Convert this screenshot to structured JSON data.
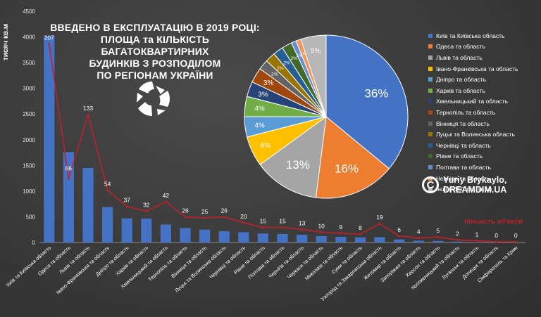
{
  "title_lines": [
    "ВВЕДЕНО В ЕКСПЛУАТАЦІЮ В 2019 РОЦІ:",
    "ПЛОЩА та КІЛЬКІСТЬ БАГАТОКВАРТИРНИХ",
    "БУДИНКІВ З РОЗПОДІЛОМ",
    "ПО РЕГІОНАМ УКРАЇНИ"
  ],
  "credit": {
    "symbol": "C",
    "lines": [
      "Yuriy Brykaylo,",
      "DREAMDIM.UA"
    ]
  },
  "logo": {
    "icon": "triskelion-logo-icon"
  },
  "chart_data": [
    {
      "type": "bar",
      "ylabel": "тисяч кв.м",
      "ylim": [
        0,
        4500
      ],
      "yticks": [
        0,
        500,
        1000,
        1500,
        2000,
        2500,
        3000,
        3500,
        4000,
        4500
      ],
      "categories": [
        "Київ та Київська область",
        "Одеса та область",
        "Львів та область",
        "Івано-Франківська та область",
        "Дніпро та область",
        "Харків та область",
        "Хмельницький та область",
        "Тернопіль та область",
        "Вінниця та область",
        "Луцьк та Волинська область",
        "Чернівці та область",
        "Рівне та область",
        "Полтава та область",
        "Чернігів та область",
        "Черкаси та область",
        "Миколаїв та область",
        "Суми та область",
        "Ужгород та Закарпатська область",
        "Житомир та область",
        "Запоріжжя та область",
        "Херсон та область",
        "Кропивницький та область",
        "Луганськ та область",
        "Донецьк та область",
        "Сімферополь та Крим"
      ],
      "series": [
        {
          "values": [
            4020,
            1760,
            1450,
            690,
            470,
            465,
            350,
            280,
            250,
            220,
            200,
            175,
            165,
            150,
            125,
            110,
            100,
            105,
            60,
            35,
            30,
            18,
            8,
            3,
            2
          ],
          "color": "#4472c4"
        },
        {
          "name": "Кількість об'єктів",
          "type": "line",
          "color": "#c0202a",
          "values": [
            207,
            66,
            133,
            54,
            37,
            32,
            42,
            26,
            25,
            26,
            20,
            15,
            15,
            13,
            10,
            9,
            8,
            19,
            6,
            4,
            5,
            2,
            1,
            0,
            0
          ],
          "labels": [
            "207",
            "66",
            "133",
            "54",
            "37",
            "32",
            "42",
            "26",
            "25",
            "26",
            "20",
            "15",
            "15",
            "13",
            "10",
            "9",
            "8",
            "19",
            "6",
            "4",
            "5",
            "2",
            "1",
            "0",
            "0"
          ]
        }
      ],
      "grid": false
    },
    {
      "type": "pie",
      "legend_position": "right",
      "slices": [
        {
          "label": "Київ та Київська область",
          "value": 36,
          "text": "36%",
          "color": "#4472c4"
        },
        {
          "label": "Одеса та область",
          "value": 16,
          "text": "16%",
          "color": "#ed7d31"
        },
        {
          "label": "Львів та область",
          "value": 13,
          "text": "13%",
          "color": "#a5a5a5"
        },
        {
          "label": "Івано-Франківська та область",
          "value": 6,
          "text": "6%",
          "color": "#ffc000"
        },
        {
          "label": "Дніпро та область",
          "value": 4,
          "text": "4%",
          "color": "#5b9bd5"
        },
        {
          "label": "Харків та область",
          "value": 4,
          "text": "4%",
          "color": "#70ad47"
        },
        {
          "label": "Хмельницький та область",
          "value": 3,
          "text": "3%",
          "color": "#264478"
        },
        {
          "label": "Тернопіль та область",
          "value": 3,
          "text": "3%",
          "color": "#9e480e"
        },
        {
          "label": "Вінниця та область",
          "value": 2,
          "text": "2%",
          "color": "#636363"
        },
        {
          "label": "Луцьк та Волинська область",
          "value": 2,
          "text": "2%",
          "color": "#997300"
        },
        {
          "label": "Чернівці та область",
          "value": 2,
          "text": "2%",
          "color": "#255e91"
        },
        {
          "label": "Рівне та область",
          "value": 2,
          "text": "2%",
          "color": "#43682b"
        },
        {
          "label": "Полтава та область",
          "value": 1,
          "text": "1%",
          "color": "#698ed0"
        },
        {
          "label": "Чернігів та область",
          "value": 1,
          "text": "1%",
          "color": "#f1975a"
        },
        {
          "label": "Інші (<150 тис. кв.м)",
          "value": 5,
          "text": "5%",
          "color": "#b7b7b7"
        }
      ]
    }
  ]
}
